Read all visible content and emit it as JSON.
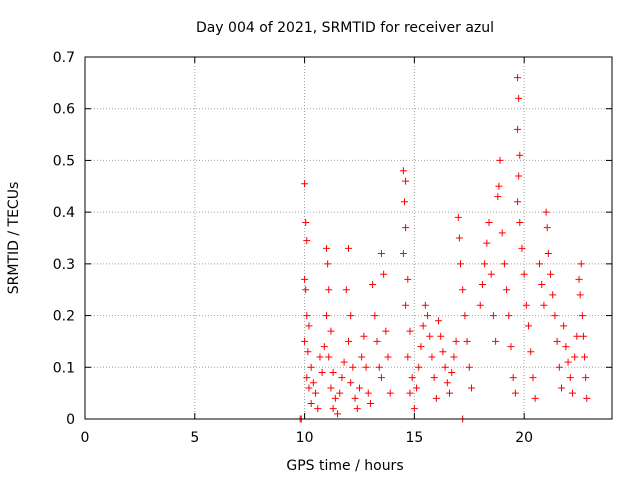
{
  "chart_data": {
    "type": "scatter",
    "title": "Day 004 of 2021, SRMTID for receiver azul",
    "xlabel": "GPS time / hours",
    "ylabel": "SRMTID / TECUs",
    "xlim": [
      0,
      24
    ],
    "ylim": [
      0,
      0.7
    ],
    "x_ticks": [
      0,
      5,
      10,
      15,
      20
    ],
    "y_ticks": [
      0,
      0.1,
      0.2,
      0.3,
      0.4,
      0.5,
      0.6,
      0.7
    ],
    "x_tick_labels": [
      "0",
      "5",
      "10",
      "15",
      "20"
    ],
    "y_tick_labels": [
      "0",
      "0.1",
      "0.2",
      "0.3",
      "0.4",
      "0.5",
      "0.6",
      "0.7"
    ],
    "grid": true,
    "marker": "+",
    "color": "#ff0000",
    "series": [
      {
        "name": "azul",
        "points": [
          [
            9.8,
            0.0
          ],
          [
            9.85,
            0.0
          ],
          [
            17.2,
            0.0
          ],
          [
            10.0,
            0.455
          ],
          [
            10.05,
            0.38
          ],
          [
            10.1,
            0.345
          ],
          [
            10.0,
            0.27
          ],
          [
            10.05,
            0.25
          ],
          [
            10.1,
            0.2
          ],
          [
            10.2,
            0.18
          ],
          [
            10.0,
            0.15
          ],
          [
            10.15,
            0.13
          ],
          [
            10.3,
            0.1
          ],
          [
            10.1,
            0.08
          ],
          [
            10.4,
            0.07
          ],
          [
            10.2,
            0.06
          ],
          [
            10.5,
            0.05
          ],
          [
            10.3,
            0.03
          ],
          [
            10.6,
            0.02
          ],
          [
            10.7,
            0.12
          ],
          [
            10.8,
            0.09
          ],
          [
            10.9,
            0.14
          ],
          [
            11.0,
            0.33
          ],
          [
            11.05,
            0.3
          ],
          [
            11.1,
            0.25
          ],
          [
            11.0,
            0.2
          ],
          [
            11.2,
            0.17
          ],
          [
            11.1,
            0.12
          ],
          [
            11.3,
            0.09
          ],
          [
            11.2,
            0.06
          ],
          [
            11.4,
            0.04
          ],
          [
            11.3,
            0.02
          ],
          [
            11.5,
            0.01
          ],
          [
            11.6,
            0.05
          ],
          [
            11.7,
            0.08
          ],
          [
            11.8,
            0.11
          ],
          [
            12.0,
            0.33
          ],
          [
            11.9,
            0.25
          ],
          [
            12.1,
            0.2
          ],
          [
            12.0,
            0.15
          ],
          [
            12.2,
            0.1
          ],
          [
            12.1,
            0.07
          ],
          [
            12.3,
            0.04
          ],
          [
            12.4,
            0.02
          ],
          [
            12.5,
            0.06
          ],
          [
            12.6,
            0.12
          ],
          [
            12.7,
            0.16
          ],
          [
            12.8,
            0.1
          ],
          [
            12.9,
            0.05
          ],
          [
            13.0,
            0.03
          ],
          [
            13.1,
            0.26
          ],
          [
            13.2,
            0.2
          ],
          [
            13.3,
            0.15
          ],
          [
            13.4,
            0.1
          ],
          [
            13.5,
            0.32
          ],
          [
            13.6,
            0.28
          ],
          [
            13.7,
            0.17
          ],
          [
            13.8,
            0.12
          ],
          [
            13.5,
            0.08
          ],
          [
            13.9,
            0.05
          ],
          [
            14.5,
            0.48
          ],
          [
            14.6,
            0.46
          ],
          [
            14.55,
            0.42
          ],
          [
            14.6,
            0.37
          ],
          [
            14.5,
            0.32
          ],
          [
            14.7,
            0.27
          ],
          [
            14.6,
            0.22
          ],
          [
            14.8,
            0.17
          ],
          [
            14.7,
            0.12
          ],
          [
            14.9,
            0.08
          ],
          [
            14.8,
            0.05
          ],
          [
            15.0,
            0.02
          ],
          [
            15.1,
            0.06
          ],
          [
            15.2,
            0.1
          ],
          [
            15.3,
            0.14
          ],
          [
            15.4,
            0.18
          ],
          [
            15.5,
            0.22
          ],
          [
            15.6,
            0.2
          ],
          [
            15.7,
            0.16
          ],
          [
            15.8,
            0.12
          ],
          [
            15.9,
            0.08
          ],
          [
            16.0,
            0.04
          ],
          [
            16.1,
            0.19
          ],
          [
            16.2,
            0.16
          ],
          [
            16.3,
            0.13
          ],
          [
            16.4,
            0.1
          ],
          [
            16.5,
            0.07
          ],
          [
            16.6,
            0.05
          ],
          [
            16.7,
            0.09
          ],
          [
            16.8,
            0.12
          ],
          [
            16.9,
            0.15
          ],
          [
            17.0,
            0.39
          ],
          [
            17.05,
            0.35
          ],
          [
            17.1,
            0.3
          ],
          [
            17.2,
            0.25
          ],
          [
            17.3,
            0.2
          ],
          [
            17.4,
            0.15
          ],
          [
            17.5,
            0.1
          ],
          [
            17.6,
            0.06
          ],
          [
            18.0,
            0.22
          ],
          [
            18.1,
            0.26
          ],
          [
            18.2,
            0.3
          ],
          [
            18.3,
            0.34
          ],
          [
            18.4,
            0.38
          ],
          [
            18.5,
            0.28
          ],
          [
            18.6,
            0.2
          ],
          [
            18.7,
            0.15
          ],
          [
            18.8,
            0.43
          ],
          [
            18.9,
            0.5
          ],
          [
            18.85,
            0.45
          ],
          [
            19.0,
            0.36
          ],
          [
            19.1,
            0.3
          ],
          [
            19.2,
            0.25
          ],
          [
            19.3,
            0.2
          ],
          [
            19.4,
            0.14
          ],
          [
            19.5,
            0.08
          ],
          [
            19.6,
            0.05
          ],
          [
            19.7,
            0.66
          ],
          [
            19.75,
            0.62
          ],
          [
            19.7,
            0.56
          ],
          [
            19.8,
            0.51
          ],
          [
            19.75,
            0.47
          ],
          [
            19.7,
            0.42
          ],
          [
            19.8,
            0.38
          ],
          [
            19.9,
            0.33
          ],
          [
            20.0,
            0.28
          ],
          [
            20.1,
            0.22
          ],
          [
            20.2,
            0.18
          ],
          [
            20.3,
            0.13
          ],
          [
            20.4,
            0.08
          ],
          [
            20.5,
            0.04
          ],
          [
            20.7,
            0.3
          ],
          [
            20.8,
            0.26
          ],
          [
            20.9,
            0.22
          ],
          [
            21.0,
            0.4
          ],
          [
            21.05,
            0.37
          ],
          [
            21.1,
            0.32
          ],
          [
            21.2,
            0.28
          ],
          [
            21.3,
            0.24
          ],
          [
            21.4,
            0.2
          ],
          [
            21.5,
            0.15
          ],
          [
            21.6,
            0.1
          ],
          [
            21.7,
            0.06
          ],
          [
            21.8,
            0.18
          ],
          [
            21.9,
            0.14
          ],
          [
            22.0,
            0.11
          ],
          [
            22.1,
            0.08
          ],
          [
            22.2,
            0.05
          ],
          [
            22.3,
            0.12
          ],
          [
            22.4,
            0.16
          ],
          [
            22.5,
            0.27
          ],
          [
            22.6,
            0.3
          ],
          [
            22.55,
            0.24
          ],
          [
            22.65,
            0.2
          ],
          [
            22.7,
            0.16
          ],
          [
            22.75,
            0.12
          ],
          [
            22.8,
            0.08
          ],
          [
            22.85,
            0.04
          ]
        ]
      }
    ]
  }
}
